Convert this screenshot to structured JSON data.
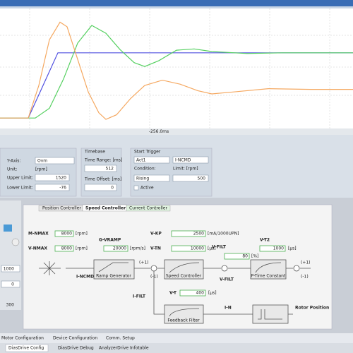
{
  "plot": {
    "type": "line",
    "x_label": "-256.0ms",
    "xlim": [
      0,
      100
    ],
    "ylim": [
      -16,
      168
    ],
    "series": [
      {
        "color": "#5050e0",
        "x": [
          0,
          8,
          16.4,
          100
        ],
        "values": [
          0,
          0,
          100,
          100
        ]
      },
      {
        "color": "#55d060",
        "x": [
          0,
          10,
          14,
          18,
          22,
          26,
          30,
          34,
          38,
          41,
          45,
          50,
          55,
          60,
          70,
          80,
          100
        ],
        "values": [
          0,
          0,
          15,
          60,
          115,
          142,
          130,
          105,
          85,
          79,
          88,
          104,
          106,
          102,
          99,
          100,
          100
        ]
      },
      {
        "color": "#f5a860",
        "x": [
          0,
          8,
          11,
          14,
          17,
          19,
          22,
          25,
          28,
          30,
          33,
          37,
          41,
          46,
          51,
          56,
          60,
          66,
          76,
          88,
          100
        ],
        "values": [
          0,
          0,
          50,
          120,
          147,
          140,
          90,
          40,
          8,
          -2,
          5,
          30,
          50,
          58,
          52,
          42,
          37,
          40,
          45,
          44,
          44
        ]
      }
    ]
  },
  "scope_settings": {
    "y_axis_label": "Y-Axis:",
    "y_axis_value": "Ovm",
    "unit_label": "Unit:",
    "unit_value": "[rpm]",
    "upper_limit_label": "Upper Limit:",
    "upper_limit_value": 1520,
    "lower_limit_label": "Lower Limit:",
    "lower_limit_value": -76,
    "timebase_title": "Timebase",
    "time_range_label": "Time Range: [ms]",
    "time_range_value": 512,
    "time_offset_label": "Time Offset: [ms]",
    "time_offset_value": 0,
    "trigger_title": "Start Trigger",
    "trigger_source": "Act1",
    "trigger_signal": "I-NCMD",
    "condition_label": "Condition:",
    "limit_label": "Limit: [rpm]",
    "condition_value": "Rising",
    "limit_value": 500,
    "active_label": "Active"
  },
  "side_values": [
    1000,
    0,
    300
  ],
  "controller": {
    "tabs": [
      "Position Controller",
      "Speed Controller",
      "Current Controller"
    ],
    "params": [
      {
        "name": "M-NMAX",
        "value": 8000,
        "unit": "[rpm]"
      },
      {
        "name": "V-NMAX",
        "value": 8000,
        "unit": "[rpm]"
      },
      {
        "name": "G-VRAMP",
        "value": 20000,
        "unit": "[rpm/s]"
      },
      {
        "name": "V-KP",
        "value": 2500,
        "unit": "[mA/1000UPN]"
      },
      {
        "name": "V-TN",
        "value": 10000,
        "unit": "[µs]"
      },
      {
        "name": "V-FILT",
        "value": 80,
        "unit": "[%]"
      },
      {
        "name": "V-T2",
        "value": 1000,
        "unit": "[µs]"
      },
      {
        "name": "V-T",
        "value": 400,
        "unit": "[µs]"
      }
    ],
    "blocks": [
      "Ramp Generator",
      "Speed Controller",
      "P-Time Constant",
      "Feedback Filter"
    ],
    "signals": {
      "input": "I-NCMD",
      "feedback": "I-FILT",
      "speed": "I-N",
      "position": "Rotor Position"
    },
    "sign_plus": "(+1)",
    "sign_minus": "(-1)"
  },
  "footer": {
    "tabs": [
      "Motor Configuration",
      "Device Configuration",
      "Comm. Setup"
    ],
    "taskbar": [
      "DiasDrive Config",
      "DiasDrive Debug",
      "AnalyzerDrive Infotable"
    ]
  }
}
